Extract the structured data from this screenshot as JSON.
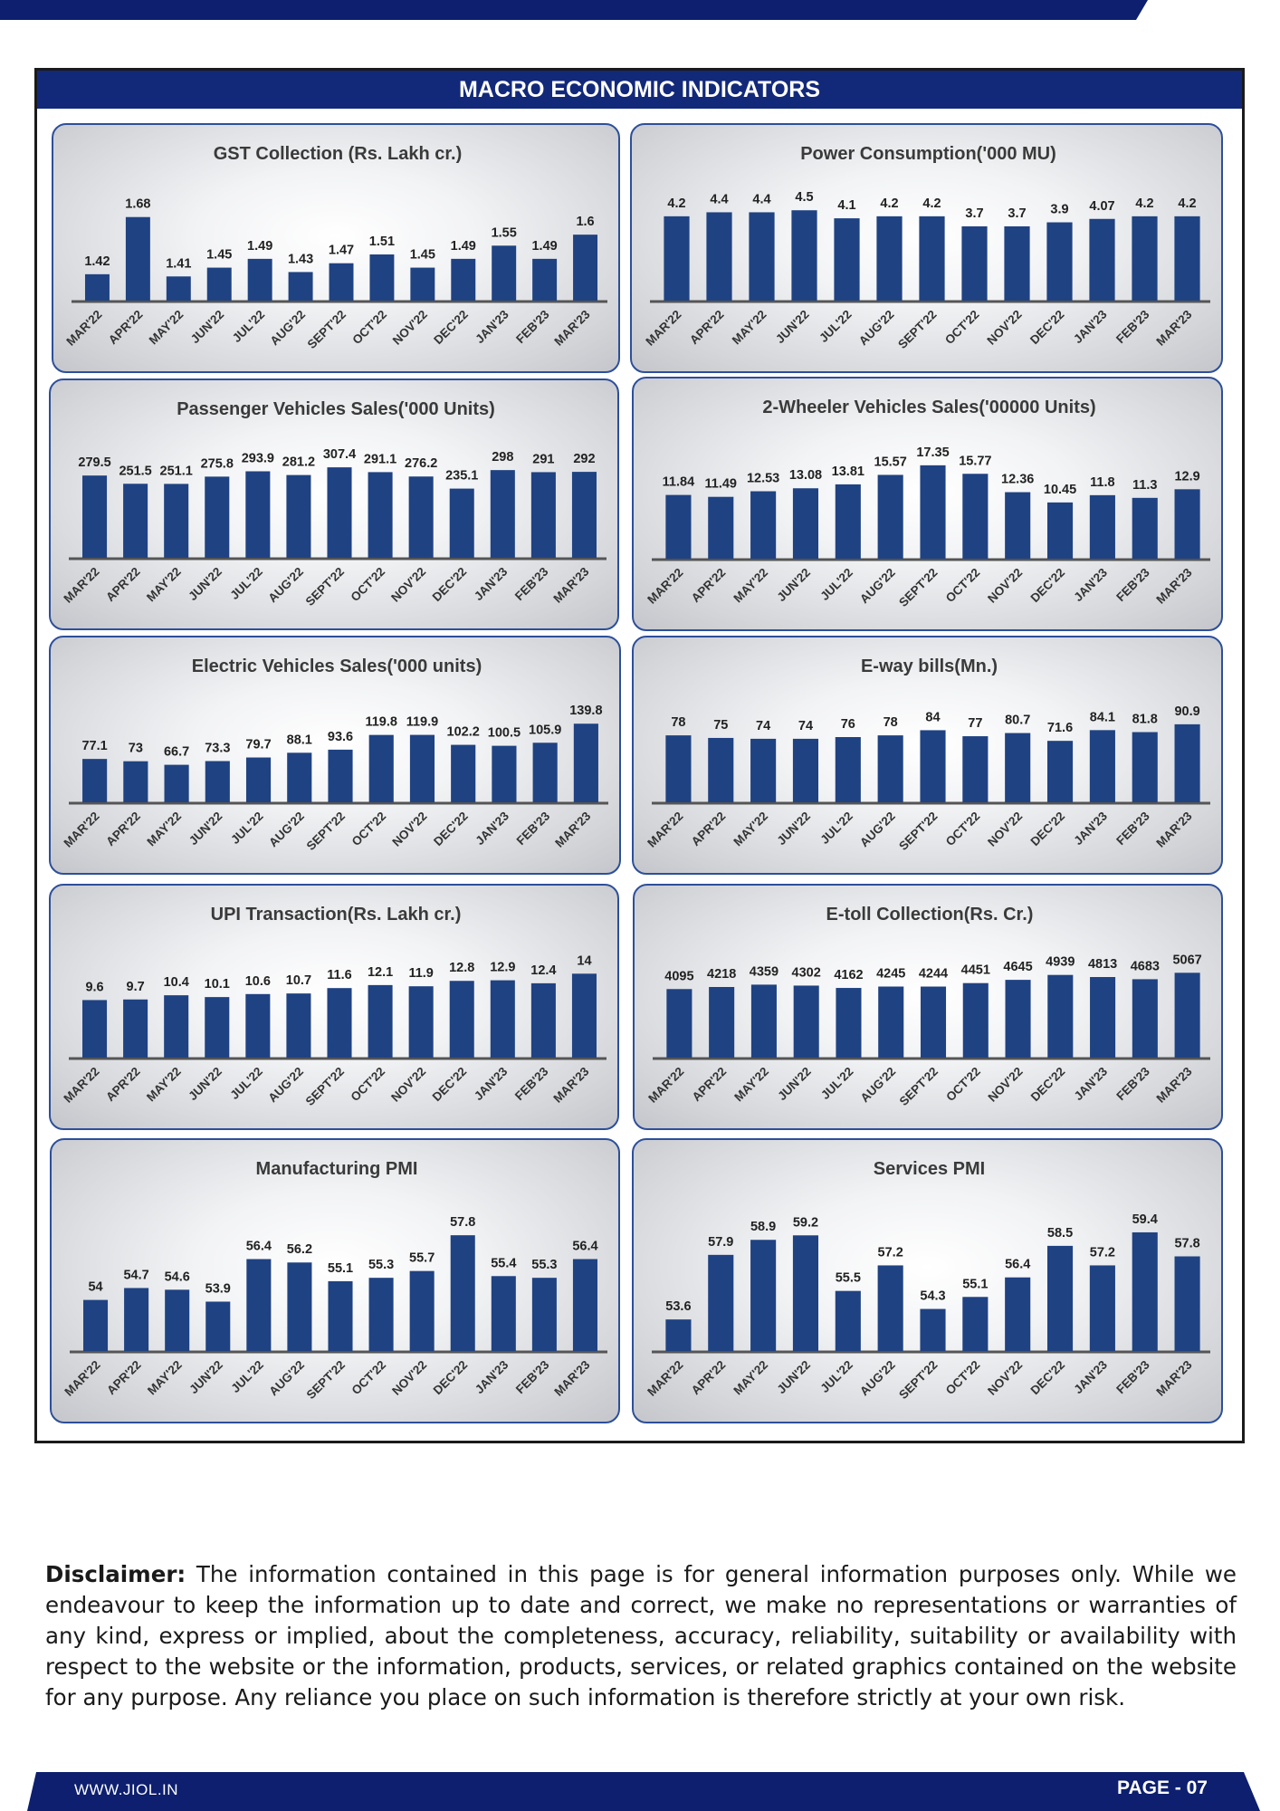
{
  "page": {
    "title": "MACRO ECONOMIC INDICATORS",
    "disclaimer_label": "Disclaimer:",
    "disclaimer_text": " The information contained in this page is for general information purposes only.  While we endeavour to keep the information up to date and correct, we make no representations or warranties of any kind, express or implied, about the completeness, accuracy, reliability, suitability or availability with respect to the website or the information, products, services, or related graphics contained on the website for any purpose. Any reliance you place on such information is therefore strictly at your own risk.",
    "footer_website": "WWW.JIOL.IN",
    "footer_page": "PAGE - 07"
  },
  "colors": {
    "bar": "#1f4282",
    "header": "#12297a",
    "band": "#0d1f6e",
    "panel_border": "#2d4f9a"
  },
  "chart_data": [
    {
      "type": "bar",
      "title": "GST Collection (Rs. Lakh cr.)",
      "categories": [
        "MAR'22",
        "APR'22",
        "MAY'22",
        "JUN'22",
        "JUL'22",
        "AUG'22",
        "SEPT'22",
        "OCT'22",
        "NOV'22",
        "DEC'22",
        "JAN'23",
        "FEB'23",
        "MAR'23"
      ],
      "values": [
        1.42,
        1.68,
        1.41,
        1.45,
        1.49,
        1.43,
        1.47,
        1.51,
        1.45,
        1.49,
        1.55,
        1.49,
        1.6
      ],
      "labels": [
        "1.42",
        "1.68",
        "1.41",
        "1.45",
        "1.49",
        "1.43",
        "1.47",
        "1.51",
        "1.45",
        "1.49",
        "1.55",
        "1.49",
        "1.6"
      ],
      "ylim": [
        1.3,
        1.72
      ]
    },
    {
      "type": "bar",
      "title": "Power Consumption('000 MU)",
      "categories": [
        "MAR'22",
        "APR'22",
        "MAY'22",
        "JUN'22",
        "JUL'22",
        "AUG'22",
        "SEPT'22",
        "OCT'22",
        "NOV'22",
        "DEC'22",
        "JAN'23",
        "FEB'23",
        "MAR'23"
      ],
      "values": [
        4.2,
        4.4,
        4.4,
        4.5,
        4.1,
        4.2,
        4.2,
        3.7,
        3.7,
        3.9,
        4.07,
        4.2,
        4.2
      ],
      "labels": [
        "4.2",
        "4.4",
        "4.4",
        "4.5",
        "4.1",
        "4.2",
        "4.2",
        "3.7",
        "3.7",
        "3.9",
        "4.07",
        "4.2",
        "4.2"
      ],
      "ylim": [
        0,
        4.6
      ]
    },
    {
      "type": "bar",
      "title": "Passenger Vehicles Sales('000 Units)",
      "categories": [
        "MAR'22",
        "APR'22",
        "MAY'22",
        "JUN'22",
        "JUL'22",
        "AUG'22",
        "SEPT'22",
        "OCT'22",
        "NOV'22",
        "DEC'22",
        "JAN'23",
        "FEB'23",
        "MAR'23"
      ],
      "values": [
        279.5,
        251.5,
        251.1,
        275.8,
        293.9,
        281.2,
        307.4,
        291.1,
        276.2,
        235.1,
        298,
        291,
        292
      ],
      "labels": [
        "279.5",
        "251.5",
        "251.1",
        "275.8",
        "293.9",
        "281.2",
        "307.4",
        "291.1",
        "276.2",
        "235.1",
        "298",
        "291",
        "292"
      ],
      "ylim": [
        0,
        320
      ]
    },
    {
      "type": "bar",
      "title": "2-Wheeler Vehicles Sales('00000 Units)",
      "categories": [
        "MAR'22",
        "APR'22",
        "MAY'22",
        "JUN'22",
        "JUL'22",
        "AUG'22",
        "SEPT'22",
        "OCT'22",
        "NOV'22",
        "DEC'22",
        "JAN'23",
        "FEB'23",
        "MAR'23"
      ],
      "values": [
        11.84,
        11.49,
        12.53,
        13.08,
        13.81,
        15.57,
        17.35,
        15.77,
        12.36,
        10.45,
        11.8,
        11.3,
        12.9
      ],
      "labels": [
        "11.84",
        "11.49",
        "12.53",
        "13.08",
        "13.81",
        "15.57",
        "17.35",
        "15.77",
        "12.36",
        "10.45",
        "11.8",
        "11.3",
        "12.9"
      ],
      "ylim": [
        0,
        18
      ]
    },
    {
      "type": "bar",
      "title": "Electric Vehicles Sales('000 units)",
      "categories": [
        "MAR'22",
        "APR'22",
        "MAY'22",
        "JUN'22",
        "JUL'22",
        "AUG'22",
        "SEPT'22",
        "OCT'22",
        "NOV'22",
        "DEC'22",
        "JAN'23",
        "FEB'23",
        "MAR'23"
      ],
      "values": [
        77.1,
        73,
        66.7,
        73.3,
        79.7,
        88.1,
        93.6,
        119.8,
        119.9,
        102.2,
        100.5,
        105.9,
        139.8
      ],
      "labels": [
        "77.1",
        "73",
        "66.7",
        "73.3",
        "79.7",
        "88.1",
        "93.6",
        "119.8",
        "119.9",
        "102.2",
        "100.5",
        "105.9",
        "139.8"
      ],
      "ylim": [
        0,
        145
      ]
    },
    {
      "type": "bar",
      "title": "E-way bills(Mn.)",
      "categories": [
        "MAR'22",
        "APR'22",
        "MAY'22",
        "JUN'22",
        "JUL'22",
        "AUG'22",
        "SEPT'22",
        "OCT'22",
        "NOV'22",
        "DEC'22",
        "JAN'23",
        "FEB'23",
        "MAR'23"
      ],
      "values": [
        78,
        75,
        74,
        74,
        76,
        78,
        84,
        77,
        80.7,
        71.6,
        84.1,
        81.8,
        90.9
      ],
      "labels": [
        "78",
        "75",
        "74",
        "74",
        "76",
        "78",
        "84",
        "77",
        "80.7",
        "71.6",
        "84.1",
        "81.8",
        "90.9"
      ],
      "ylim": [
        0,
        95
      ]
    },
    {
      "type": "bar",
      "title": "UPI Transaction(Rs. Lakh cr.)",
      "categories": [
        "MAR'22",
        "APR'22",
        "MAY'22",
        "JUN'22",
        "JUL'22",
        "AUG'22",
        "SEPT'22",
        "OCT'22",
        "NOV'22",
        "DEC'22",
        "JAN'23",
        "FEB'23",
        "MAR'23"
      ],
      "values": [
        9.6,
        9.7,
        10.4,
        10.1,
        10.6,
        10.7,
        11.6,
        12.1,
        11.9,
        12.8,
        12.9,
        12.4,
        14
      ],
      "labels": [
        "9.6",
        "9.7",
        "10.4",
        "10.1",
        "10.6",
        "10.7",
        "11.6",
        "12.1",
        "11.9",
        "12.8",
        "12.9",
        "12.4",
        "14"
      ],
      "ylim": [
        0,
        14.8
      ]
    },
    {
      "type": "bar",
      "title": "E-toll Collection(Rs. Cr.)",
      "categories": [
        "MAR'22",
        "APR'22",
        "MAY'22",
        "JUN'22",
        "JUL'22",
        "AUG'22",
        "SEPT'22",
        "OCT'22",
        "NOV'22",
        "DEC'22",
        "JAN'23",
        "FEB'23",
        "MAR'23"
      ],
      "values": [
        4095,
        4218,
        4359,
        4302,
        4162,
        4245,
        4244,
        4451,
        4645,
        4939,
        4813,
        4683,
        5067
      ],
      "labels": [
        "4095",
        "4218",
        "4359",
        "4302",
        "4162",
        "4245",
        "4244",
        "4451",
        "4645",
        "4939",
        "4813",
        "4683",
        "5067"
      ],
      "ylim": [
        0,
        5300
      ]
    },
    {
      "type": "bar",
      "title": "Manufacturing PMI",
      "categories": [
        "MAR'22",
        "APR'22",
        "MAY'22",
        "JUN'22",
        "JUL'22",
        "AUG'22",
        "SEPT'22",
        "OCT'22",
        "NOV'22",
        "DEC'22",
        "JAN'23",
        "FEB'23",
        "MAR'23"
      ],
      "values": [
        54,
        54.7,
        54.6,
        53.9,
        56.4,
        56.2,
        55.1,
        55.3,
        55.7,
        57.8,
        55.4,
        55.3,
        56.4
      ],
      "labels": [
        "54",
        "54.7",
        "54.6",
        "53.9",
        "56.4",
        "56.2",
        "55.1",
        "55.3",
        "55.7",
        "57.8",
        "55.4",
        "55.3",
        "56.4"
      ],
      "ylim": [
        51,
        58.5
      ]
    },
    {
      "type": "bar",
      "title": "Services PMI",
      "categories": [
        "MAR'22",
        "APR'22",
        "MAY'22",
        "JUN'22",
        "JUL'22",
        "AUG'22",
        "SEPT'22",
        "OCT'22",
        "NOV'22",
        "DEC'22",
        "JAN'23",
        "FEB'23",
        "MAR'23"
      ],
      "values": [
        53.6,
        57.9,
        58.9,
        59.2,
        55.5,
        57.2,
        54.3,
        55.1,
        56.4,
        58.5,
        57.2,
        59.4,
        57.8
      ],
      "labels": [
        "53.6",
        "57.9",
        "58.9",
        "59.2",
        "55.5",
        "57.2",
        "54.3",
        "55.1",
        "56.4",
        "58.5",
        "57.2",
        "59.4",
        "57.8"
      ],
      "ylim": [
        51.5,
        60
      ]
    }
  ]
}
